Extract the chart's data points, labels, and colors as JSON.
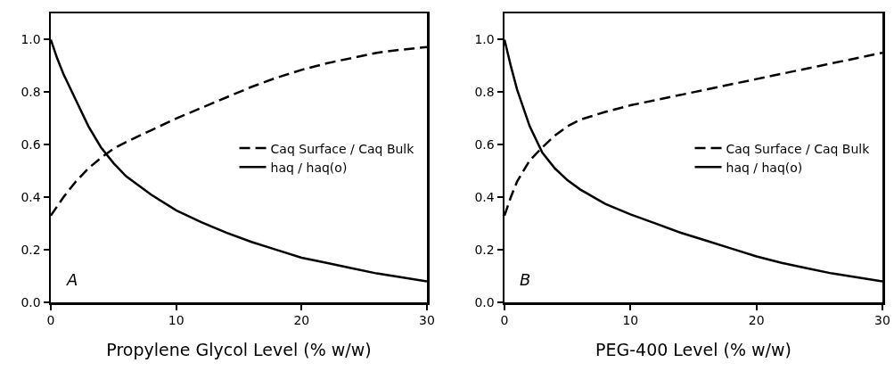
{
  "chart_data": [
    {
      "type": "line",
      "xlabel": "Propylene Glycol Level (% w/w)",
      "annotations": [
        "A"
      ],
      "xlim": [
        0,
        30
      ],
      "xticks": [
        0,
        10,
        20,
        30
      ],
      "ylim": [
        0,
        1.1
      ],
      "yticks": [
        {
          "value": 0,
          "label": "0.0"
        },
        {
          "value": 0.2,
          "label": "0.2"
        },
        {
          "value": 0.4,
          "label": "0.4"
        },
        {
          "value": 0.6,
          "label": "0.6"
        },
        {
          "value": 0.8,
          "label": "0.8"
        },
        {
          "value": 1,
          "label": "1.0"
        }
      ],
      "grid": false,
      "legend": "right",
      "series": [
        {
          "name": "Caq Surface / Caq Bulk",
          "color": "#000000",
          "line_style": "dashed",
          "x": [
            0,
            1,
            2,
            3,
            4,
            5,
            6,
            8,
            10,
            12,
            14,
            16,
            18,
            20,
            22,
            24,
            26,
            28,
            30
          ],
          "values": [
            0.33,
            0.4,
            0.46,
            0.51,
            0.55,
            0.585,
            0.61,
            0.655,
            0.7,
            0.74,
            0.78,
            0.82,
            0.855,
            0.885,
            0.91,
            0.93,
            0.95,
            0.962,
            0.972
          ]
        },
        {
          "name": "haq / haq(o)",
          "color": "#000000",
          "line_style": "solid",
          "x": [
            0,
            0.5,
            1,
            2,
            3,
            4,
            5,
            6,
            8,
            10,
            12,
            14,
            16,
            18,
            20,
            22,
            24,
            26,
            28,
            30
          ],
          "values": [
            1.0,
            0.93,
            0.87,
            0.77,
            0.67,
            0.59,
            0.53,
            0.48,
            0.41,
            0.35,
            0.305,
            0.265,
            0.23,
            0.2,
            0.17,
            0.15,
            0.13,
            0.11,
            0.095,
            0.08
          ]
        }
      ]
    },
    {
      "type": "line",
      "xlabel": "PEG-400 Level (% w/w)",
      "annotations": [
        "B"
      ],
      "xlim": [
        0,
        30
      ],
      "xticks": [
        0,
        10,
        20,
        30
      ],
      "ylim": [
        0,
        1.1
      ],
      "yticks": [
        {
          "value": 0,
          "label": "0.0"
        },
        {
          "value": 0.2,
          "label": "0.2"
        },
        {
          "value": 0.4,
          "label": "0.4"
        },
        {
          "value": 0.6,
          "label": "0.6"
        },
        {
          "value": 0.8,
          "label": "0.8"
        },
        {
          "value": 1,
          "label": "1.0"
        }
      ],
      "grid": false,
      "legend": "right",
      "series": [
        {
          "name": "Caq Surface / Caq Bulk",
          "color": "#000000",
          "line_style": "dashed",
          "x": [
            0,
            0.5,
            1,
            2,
            3,
            4,
            5,
            6,
            8,
            10,
            12,
            15,
            20,
            25,
            30
          ],
          "values": [
            0.33,
            0.4,
            0.46,
            0.54,
            0.59,
            0.635,
            0.67,
            0.695,
            0.725,
            0.75,
            0.77,
            0.8,
            0.85,
            0.9,
            0.95
          ]
        },
        {
          "name": "haq / haq(o)",
          "color": "#000000",
          "line_style": "solid",
          "x": [
            0,
            0.5,
            1,
            2,
            3,
            4,
            5,
            6,
            8,
            10,
            12,
            14,
            16,
            18,
            20,
            22,
            24,
            26,
            28,
            30
          ],
          "values": [
            1.0,
            0.9,
            0.81,
            0.67,
            0.57,
            0.51,
            0.465,
            0.43,
            0.375,
            0.335,
            0.3,
            0.265,
            0.235,
            0.205,
            0.175,
            0.15,
            0.13,
            0.11,
            0.095,
            0.08
          ]
        }
      ]
    }
  ]
}
